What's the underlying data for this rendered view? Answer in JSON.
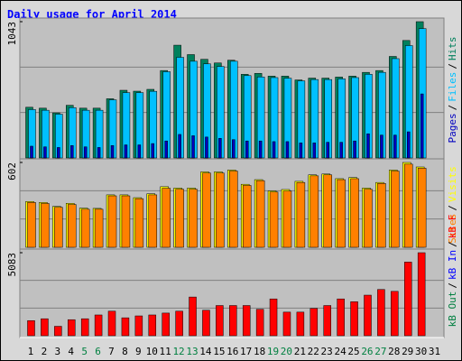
{
  "chart_data": {
    "type": "bar",
    "title": "Daily usage for April 2014",
    "legend_separator": "/",
    "categories": [
      "1",
      "2",
      "3",
      "4",
      "5",
      "6",
      "7",
      "8",
      "9",
      "10",
      "11",
      "12",
      "13",
      "14",
      "15",
      "16",
      "17",
      "18",
      "19",
      "20",
      "21",
      "22",
      "23",
      "24",
      "25",
      "26",
      "27",
      "28",
      "29",
      "30",
      "31"
    ],
    "category_colors": [
      "#000000",
      "#000000",
      "#000000",
      "#000000",
      "#008040",
      "#008040",
      "#000000",
      "#000000",
      "#000000",
      "#000000",
      "#000000",
      "#008040",
      "#008040",
      "#000000",
      "#000000",
      "#000000",
      "#000000",
      "#000000",
      "#008040",
      "#008040",
      "#000000",
      "#000000",
      "#000000",
      "#000000",
      "#000000",
      "#008040",
      "#008040",
      "#000000",
      "#000000",
      "#000000",
      "#000000"
    ],
    "panels": [
      {
        "ylim": [
          0,
          1043
        ],
        "yticks": [
          1043
        ],
        "series": [
          {
            "name": "Hits",
            "color": "#00805c",
            "values": [
              388,
              381,
              345,
              403,
              381,
              381,
              453,
              518,
              511,
              525,
              669,
              863,
              791,
              755,
              727,
              748,
              640,
              647,
              626,
              626,
              597,
              611,
              611,
              619,
              626,
              655,
              669,
              777,
              899,
              1043,
              0
            ]
          },
          {
            "name": "Files",
            "color": "#00c0ff",
            "values": [
              370,
              365,
              335,
              385,
              365,
              365,
              445,
              500,
              500,
              510,
              660,
              770,
              740,
              720,
              700,
              740,
              630,
              620,
              615,
              610,
              590,
              600,
              600,
              605,
              615,
              640,
              655,
              760,
              860,
              990,
              0
            ]
          },
          {
            "name": "Pages",
            "color": "#0000c0",
            "values": [
              90,
              85,
              80,
              95,
              85,
              80,
              95,
              100,
              100,
              110,
              130,
              180,
              170,
              160,
              150,
              140,
              130,
              130,
              125,
              125,
              115,
              115,
              120,
              120,
              130,
              185,
              175,
              175,
              200,
              490,
              0
            ]
          }
        ]
      },
      {
        "ylim": [
          0,
          602
        ],
        "yticks": [
          602
        ],
        "series": [
          {
            "name": "Visits",
            "color": "#ffff00",
            "values": [
              325,
              318,
              290,
              312,
              278,
              276,
              372,
              372,
              352,
              380,
              430,
              420,
              420,
              535,
              535,
              548,
              447,
              480,
              400,
              410,
              468,
              514,
              520,
              487,
              495,
              420,
              460,
              548,
              602,
              570,
              0
            ]
          },
          {
            "name": "Sites",
            "color": "#ff8000",
            "values": [
              318,
              311,
              284,
              304,
              270,
              270,
              365,
              365,
              345,
              372,
              419,
              412,
              412,
              527,
              527,
              541,
              439,
              473,
              392,
              399,
              460,
              507,
              514,
              480,
              487,
              412,
              453,
              541,
              590,
              561,
              0
            ]
          }
        ]
      },
      {
        "ylim": [
          0,
          5083
        ],
        "yticks": [
          5083
        ],
        "series": [
          {
            "name": "kB F",
            "color": "#ff0000",
            "values": [
              925,
              1040,
              578,
              983,
              1040,
              1272,
              1503,
              1098,
              1214,
              1272,
              1387,
              1503,
              2370,
              1561,
              1850,
              1850,
              1850,
              1619,
              2254,
              1445,
              1445,
              1676,
              1850,
              2254,
              2081,
              2485,
              2832,
              2716,
              4508,
              5083,
              0
            ]
          },
          {
            "name": "kB In",
            "color": "#0000ff",
            "values": [
              0,
              0,
              0,
              0,
              0,
              0,
              0,
              0,
              0,
              0,
              0,
              0,
              0,
              0,
              0,
              0,
              0,
              0,
              0,
              0,
              0,
              0,
              0,
              0,
              0,
              0,
              0,
              0,
              0,
              0,
              0
            ]
          },
          {
            "name": "kB Out",
            "color": "#008040",
            "values": [
              0,
              0,
              0,
              0,
              0,
              0,
              0,
              0,
              0,
              0,
              0,
              0,
              0,
              0,
              0,
              0,
              0,
              0,
              0,
              0,
              0,
              0,
              0,
              0,
              0,
              0,
              0,
              0,
              0,
              0,
              0
            ]
          }
        ]
      }
    ]
  }
}
